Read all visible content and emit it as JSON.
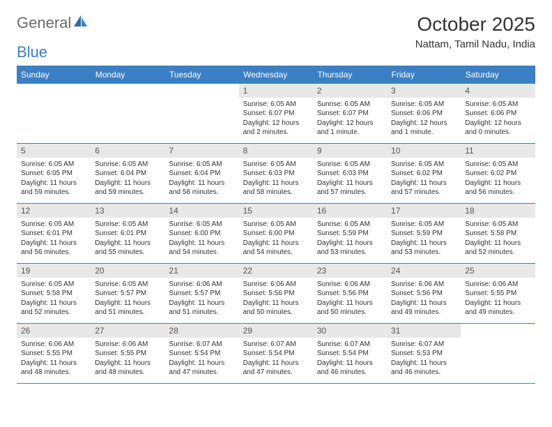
{
  "colors": {
    "header_bg": "#3b7fc4",
    "header_text": "#ffffff",
    "daynum_bg": "#e8e8e8",
    "daynum_text": "#555555",
    "body_text": "#333333",
    "logo_gray": "#6b6b6b",
    "logo_blue": "#3b7fc4",
    "rule": "#3b7fc4"
  },
  "logo": {
    "part1": "General",
    "part2": "Blue"
  },
  "title": "October 2025",
  "location": "Nattam, Tamil Nadu, India",
  "weekdays": [
    "Sunday",
    "Monday",
    "Tuesday",
    "Wednesday",
    "Thursday",
    "Friday",
    "Saturday"
  ],
  "weeks": [
    [
      {
        "n": "",
        "sr": "",
        "ss": "",
        "dl": ""
      },
      {
        "n": "",
        "sr": "",
        "ss": "",
        "dl": ""
      },
      {
        "n": "",
        "sr": "",
        "ss": "",
        "dl": ""
      },
      {
        "n": "1",
        "sr": "6:05 AM",
        "ss": "6:07 PM",
        "dl": "12 hours and 2 minutes."
      },
      {
        "n": "2",
        "sr": "6:05 AM",
        "ss": "6:07 PM",
        "dl": "12 hours and 1 minute."
      },
      {
        "n": "3",
        "sr": "6:05 AM",
        "ss": "6:06 PM",
        "dl": "12 hours and 1 minute."
      },
      {
        "n": "4",
        "sr": "6:05 AM",
        "ss": "6:06 PM",
        "dl": "12 hours and 0 minutes."
      }
    ],
    [
      {
        "n": "5",
        "sr": "6:05 AM",
        "ss": "6:05 PM",
        "dl": "11 hours and 59 minutes."
      },
      {
        "n": "6",
        "sr": "6:05 AM",
        "ss": "6:04 PM",
        "dl": "11 hours and 59 minutes."
      },
      {
        "n": "7",
        "sr": "6:05 AM",
        "ss": "6:04 PM",
        "dl": "11 hours and 58 minutes."
      },
      {
        "n": "8",
        "sr": "6:05 AM",
        "ss": "6:03 PM",
        "dl": "11 hours and 58 minutes."
      },
      {
        "n": "9",
        "sr": "6:05 AM",
        "ss": "6:03 PM",
        "dl": "11 hours and 57 minutes."
      },
      {
        "n": "10",
        "sr": "6:05 AM",
        "ss": "6:02 PM",
        "dl": "11 hours and 57 minutes."
      },
      {
        "n": "11",
        "sr": "6:05 AM",
        "ss": "6:02 PM",
        "dl": "11 hours and 56 minutes."
      }
    ],
    [
      {
        "n": "12",
        "sr": "6:05 AM",
        "ss": "6:01 PM",
        "dl": "11 hours and 56 minutes."
      },
      {
        "n": "13",
        "sr": "6:05 AM",
        "ss": "6:01 PM",
        "dl": "11 hours and 55 minutes."
      },
      {
        "n": "14",
        "sr": "6:05 AM",
        "ss": "6:00 PM",
        "dl": "11 hours and 54 minutes."
      },
      {
        "n": "15",
        "sr": "6:05 AM",
        "ss": "6:00 PM",
        "dl": "11 hours and 54 minutes."
      },
      {
        "n": "16",
        "sr": "6:05 AM",
        "ss": "5:59 PM",
        "dl": "11 hours and 53 minutes."
      },
      {
        "n": "17",
        "sr": "6:05 AM",
        "ss": "5:59 PM",
        "dl": "11 hours and 53 minutes."
      },
      {
        "n": "18",
        "sr": "6:05 AM",
        "ss": "5:58 PM",
        "dl": "11 hours and 52 minutes."
      }
    ],
    [
      {
        "n": "19",
        "sr": "6:05 AM",
        "ss": "5:58 PM",
        "dl": "11 hours and 52 minutes."
      },
      {
        "n": "20",
        "sr": "6:05 AM",
        "ss": "5:57 PM",
        "dl": "11 hours and 51 minutes."
      },
      {
        "n": "21",
        "sr": "6:06 AM",
        "ss": "5:57 PM",
        "dl": "11 hours and 51 minutes."
      },
      {
        "n": "22",
        "sr": "6:06 AM",
        "ss": "5:56 PM",
        "dl": "11 hours and 50 minutes."
      },
      {
        "n": "23",
        "sr": "6:06 AM",
        "ss": "5:56 PM",
        "dl": "11 hours and 50 minutes."
      },
      {
        "n": "24",
        "sr": "6:06 AM",
        "ss": "5:56 PM",
        "dl": "11 hours and 49 minutes."
      },
      {
        "n": "25",
        "sr": "6:06 AM",
        "ss": "5:55 PM",
        "dl": "11 hours and 49 minutes."
      }
    ],
    [
      {
        "n": "26",
        "sr": "6:06 AM",
        "ss": "5:55 PM",
        "dl": "11 hours and 48 minutes."
      },
      {
        "n": "27",
        "sr": "6:06 AM",
        "ss": "5:55 PM",
        "dl": "11 hours and 48 minutes."
      },
      {
        "n": "28",
        "sr": "6:07 AM",
        "ss": "5:54 PM",
        "dl": "11 hours and 47 minutes."
      },
      {
        "n": "29",
        "sr": "6:07 AM",
        "ss": "5:54 PM",
        "dl": "11 hours and 47 minutes."
      },
      {
        "n": "30",
        "sr": "6:07 AM",
        "ss": "5:54 PM",
        "dl": "11 hours and 46 minutes."
      },
      {
        "n": "31",
        "sr": "6:07 AM",
        "ss": "5:53 PM",
        "dl": "11 hours and 46 minutes."
      },
      {
        "n": "",
        "sr": "",
        "ss": "",
        "dl": ""
      }
    ]
  ],
  "labels": {
    "sunrise": "Sunrise: ",
    "sunset": "Sunset: ",
    "daylight": "Daylight: "
  }
}
